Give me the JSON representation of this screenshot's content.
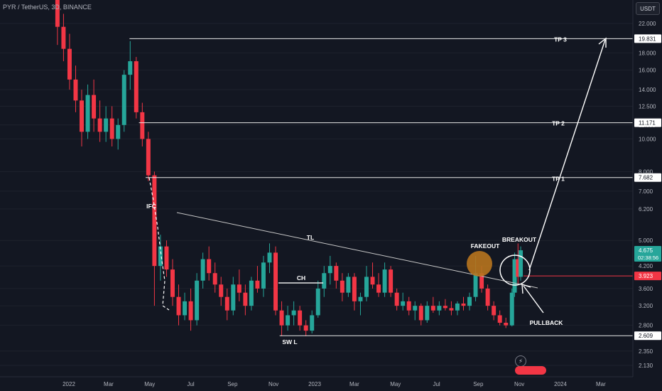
{
  "header": {
    "symbol": "PYR / TetherUS, 3D, BINANCE"
  },
  "toolbar": {
    "currency": "USDT"
  },
  "colors": {
    "bg": "#131722",
    "up": "#26a69a",
    "down": "#f23645",
    "axis_text": "#b2b5be",
    "line": "#e8e8e8",
    "annotation": "#ffffff",
    "fakeout_fill": "#b8741e"
  },
  "icons": {
    "replay": "lightning-icon"
  },
  "chart_data": {
    "type": "candlestick",
    "title": "",
    "xlabel": "",
    "ylabel": "",
    "y_scale": "log",
    "y_ticks": [
      "22.000",
      "18.000",
      "16.000",
      "14.000",
      "12.500",
      "11.000",
      "10.000",
      "8.000",
      "7.000",
      "6.200",
      "5.000",
      "4.200",
      "3.600",
      "3.200",
      "2.800",
      "2.350",
      "2.130"
    ],
    "y_tick_values": [
      22.0,
      18.0,
      16.0,
      14.0,
      12.5,
      11.0,
      10.0,
      8.0,
      7.0,
      6.2,
      5.0,
      4.2,
      3.6,
      3.2,
      2.8,
      2.35,
      2.13
    ],
    "x_ticks": [
      "2022",
      "Mar",
      "May",
      "Jul",
      "Sep",
      "Nov",
      "2023",
      "Mar",
      "May",
      "Jul",
      "Sep",
      "Nov",
      "2024",
      "Mar"
    ],
    "price_labels": [
      {
        "text": "19.831",
        "value": 19.831,
        "style": "white"
      },
      {
        "text": "11.171",
        "value": 11.171,
        "style": "white"
      },
      {
        "text": "7.682",
        "value": 7.682,
        "style": "white"
      },
      {
        "text": "4.675",
        "value": 4.675,
        "style": "green",
        "sub": "02:38:56"
      },
      {
        "text": "3.923",
        "value": 3.923,
        "style": "red"
      },
      {
        "text": "2.609",
        "value": 2.609,
        "style": "white"
      }
    ],
    "horizontal_levels": [
      {
        "label": "TP 3",
        "value": 19.831,
        "from": "2022-04-01"
      },
      {
        "label": "TP 2",
        "value": 11.171,
        "from": "2022-04-15"
      },
      {
        "label": "TP 1",
        "value": 7.682,
        "from": "2022-04-25"
      },
      {
        "label": "",
        "value": 2.609,
        "from": "2022-11-10"
      }
    ],
    "annotations": [
      "IFC",
      "TL",
      "CH",
      "SW L",
      "FAKEOUT",
      "BREAKOUT",
      "PULLBACK"
    ],
    "candles": [
      {
        "date": "2021-12-15",
        "o": 26.0,
        "h": 28.0,
        "l": 19.0,
        "c": 21.5
      },
      {
        "date": "2021-12-24",
        "o": 21.5,
        "h": 23.5,
        "l": 17.0,
        "c": 18.5
      },
      {
        "date": "2022-01-02",
        "o": 18.5,
        "h": 20.5,
        "l": 14.0,
        "c": 15.0
      },
      {
        "date": "2022-01-11",
        "o": 15.0,
        "h": 16.5,
        "l": 12.0,
        "c": 13.0
      },
      {
        "date": "2022-01-20",
        "o": 13.0,
        "h": 14.0,
        "l": 9.5,
        "c": 10.5
      },
      {
        "date": "2022-01-29",
        "o": 10.5,
        "h": 14.5,
        "l": 10.0,
        "c": 13.5
      },
      {
        "date": "2022-02-07",
        "o": 13.5,
        "h": 15.0,
        "l": 10.5,
        "c": 11.5
      },
      {
        "date": "2022-02-16",
        "o": 11.5,
        "h": 13.0,
        "l": 9.8,
        "c": 10.5
      },
      {
        "date": "2022-02-25",
        "o": 10.5,
        "h": 12.5,
        "l": 9.8,
        "c": 11.5
      },
      {
        "date": "2022-03-06",
        "o": 11.5,
        "h": 12.5,
        "l": 9.5,
        "c": 10.0
      },
      {
        "date": "2022-03-15",
        "o": 10.0,
        "h": 11.5,
        "l": 9.3,
        "c": 11.0
      },
      {
        "date": "2022-03-24",
        "o": 11.0,
        "h": 16.0,
        "l": 10.5,
        "c": 15.5
      },
      {
        "date": "2022-04-02",
        "o": 15.5,
        "h": 19.5,
        "l": 14.0,
        "c": 17.0
      },
      {
        "date": "2022-04-11",
        "o": 17.0,
        "h": 17.5,
        "l": 11.5,
        "c": 12.0
      },
      {
        "date": "2022-04-20",
        "o": 12.0,
        "h": 12.8,
        "l": 9.5,
        "c": 10.0
      },
      {
        "date": "2022-04-29",
        "o": 10.0,
        "h": 10.5,
        "l": 7.5,
        "c": 7.8
      },
      {
        "date": "2022-05-08",
        "o": 7.8,
        "h": 8.0,
        "l": 3.2,
        "c": 4.2
      },
      {
        "date": "2022-05-17",
        "o": 4.2,
        "h": 5.2,
        "l": 3.8,
        "c": 4.8
      },
      {
        "date": "2022-05-26",
        "o": 4.8,
        "h": 5.0,
        "l": 3.9,
        "c": 4.1
      },
      {
        "date": "2022-06-04",
        "o": 4.1,
        "h": 4.4,
        "l": 3.2,
        "c": 3.4
      },
      {
        "date": "2022-06-13",
        "o": 3.4,
        "h": 3.7,
        "l": 2.8,
        "c": 3.0
      },
      {
        "date": "2022-06-22",
        "o": 3.0,
        "h": 3.5,
        "l": 2.9,
        "c": 3.3
      },
      {
        "date": "2022-07-01",
        "o": 3.3,
        "h": 3.6,
        "l": 2.7,
        "c": 2.9
      },
      {
        "date": "2022-07-10",
        "o": 2.9,
        "h": 4.0,
        "l": 2.8,
        "c": 3.8
      },
      {
        "date": "2022-07-19",
        "o": 3.8,
        "h": 4.6,
        "l": 3.6,
        "c": 4.4
      },
      {
        "date": "2022-07-28",
        "o": 4.4,
        "h": 4.8,
        "l": 3.8,
        "c": 4.0
      },
      {
        "date": "2022-08-06",
        "o": 4.0,
        "h": 4.3,
        "l": 3.5,
        "c": 3.7
      },
      {
        "date": "2022-08-15",
        "o": 3.7,
        "h": 3.9,
        "l": 3.2,
        "c": 3.4
      },
      {
        "date": "2022-08-24",
        "o": 3.4,
        "h": 3.6,
        "l": 2.9,
        "c": 3.1
      },
      {
        "date": "2022-09-02",
        "o": 3.1,
        "h": 3.9,
        "l": 3.0,
        "c": 3.7
      },
      {
        "date": "2022-09-11",
        "o": 3.7,
        "h": 4.1,
        "l": 3.3,
        "c": 3.5
      },
      {
        "date": "2022-09-20",
        "o": 3.5,
        "h": 3.7,
        "l": 3.0,
        "c": 3.2
      },
      {
        "date": "2022-09-29",
        "o": 3.2,
        "h": 3.9,
        "l": 3.1,
        "c": 3.8
      },
      {
        "date": "2022-10-08",
        "o": 3.8,
        "h": 4.2,
        "l": 3.5,
        "c": 3.6
      },
      {
        "date": "2022-10-17",
        "o": 3.6,
        "h": 4.5,
        "l": 3.4,
        "c": 4.3
      },
      {
        "date": "2022-10-26",
        "o": 4.3,
        "h": 4.9,
        "l": 4.0,
        "c": 4.6
      },
      {
        "date": "2022-11-04",
        "o": 4.6,
        "h": 4.8,
        "l": 3.0,
        "c": 3.1
      },
      {
        "date": "2022-11-13",
        "o": 3.1,
        "h": 3.3,
        "l": 2.6,
        "c": 2.8
      },
      {
        "date": "2022-11-22",
        "o": 2.8,
        "h": 3.2,
        "l": 2.7,
        "c": 3.0
      },
      {
        "date": "2022-12-01",
        "o": 3.0,
        "h": 3.3,
        "l": 2.8,
        "c": 3.1
      },
      {
        "date": "2022-12-10",
        "o": 3.1,
        "h": 3.2,
        "l": 2.7,
        "c": 2.8
      },
      {
        "date": "2022-12-19",
        "o": 2.8,
        "h": 2.9,
        "l": 2.6,
        "c": 2.7
      },
      {
        "date": "2022-12-28",
        "o": 2.7,
        "h": 3.1,
        "l": 2.65,
        "c": 3.0
      },
      {
        "date": "2023-01-06",
        "o": 3.0,
        "h": 3.8,
        "l": 2.95,
        "c": 3.6
      },
      {
        "date": "2023-01-15",
        "o": 3.6,
        "h": 4.2,
        "l": 3.4,
        "c": 4.0
      },
      {
        "date": "2023-01-24",
        "o": 4.0,
        "h": 4.5,
        "l": 3.7,
        "c": 4.2
      },
      {
        "date": "2023-02-02",
        "o": 4.2,
        "h": 4.3,
        "l": 3.6,
        "c": 3.8
      },
      {
        "date": "2023-02-11",
        "o": 3.8,
        "h": 4.0,
        "l": 3.3,
        "c": 3.5
      },
      {
        "date": "2023-02-20",
        "o": 3.5,
        "h": 4.0,
        "l": 3.4,
        "c": 3.9
      },
      {
        "date": "2023-03-01",
        "o": 3.9,
        "h": 4.0,
        "l": 3.1,
        "c": 3.3
      },
      {
        "date": "2023-03-10",
        "o": 3.3,
        "h": 3.5,
        "l": 3.0,
        "c": 3.4
      },
      {
        "date": "2023-03-19",
        "o": 3.4,
        "h": 4.2,
        "l": 3.3,
        "c": 3.9
      },
      {
        "date": "2023-03-28",
        "o": 3.9,
        "h": 4.3,
        "l": 3.6,
        "c": 3.7
      },
      {
        "date": "2023-04-06",
        "o": 3.7,
        "h": 4.0,
        "l": 3.4,
        "c": 3.5
      },
      {
        "date": "2023-04-15",
        "o": 3.5,
        "h": 4.3,
        "l": 3.4,
        "c": 4.1
      },
      {
        "date": "2023-04-24",
        "o": 4.1,
        "h": 4.2,
        "l": 3.4,
        "c": 3.5
      },
      {
        "date": "2023-05-03",
        "o": 3.5,
        "h": 3.6,
        "l": 3.1,
        "c": 3.2
      },
      {
        "date": "2023-05-12",
        "o": 3.2,
        "h": 3.5,
        "l": 3.1,
        "c": 3.3
      },
      {
        "date": "2023-05-21",
        "o": 3.3,
        "h": 3.4,
        "l": 3.0,
        "c": 3.1
      },
      {
        "date": "2023-05-30",
        "o": 3.1,
        "h": 3.3,
        "l": 2.9,
        "c": 3.2
      },
      {
        "date": "2023-06-08",
        "o": 3.2,
        "h": 3.25,
        "l": 2.8,
        "c": 2.9
      },
      {
        "date": "2023-06-17",
        "o": 2.9,
        "h": 3.3,
        "l": 2.85,
        "c": 3.2
      },
      {
        "date": "2023-06-26",
        "o": 3.2,
        "h": 3.4,
        "l": 3.05,
        "c": 3.1
      },
      {
        "date": "2023-07-05",
        "o": 3.1,
        "h": 3.3,
        "l": 3.0,
        "c": 3.2
      },
      {
        "date": "2023-07-14",
        "o": 3.2,
        "h": 3.35,
        "l": 3.1,
        "c": 3.15
      },
      {
        "date": "2023-07-23",
        "o": 3.15,
        "h": 3.3,
        "l": 3.0,
        "c": 3.1
      },
      {
        "date": "2023-08-01",
        "o": 3.1,
        "h": 3.3,
        "l": 3.0,
        "c": 3.25
      },
      {
        "date": "2023-08-10",
        "o": 3.25,
        "h": 3.4,
        "l": 3.1,
        "c": 3.2
      },
      {
        "date": "2023-08-19",
        "o": 3.2,
        "h": 3.5,
        "l": 3.1,
        "c": 3.4
      },
      {
        "date": "2023-08-28",
        "o": 3.4,
        "h": 4.5,
        "l": 3.3,
        "c": 4.0
      },
      {
        "date": "2023-09-06",
        "o": 4.0,
        "h": 4.2,
        "l": 3.5,
        "c": 3.6
      },
      {
        "date": "2023-09-15",
        "o": 3.6,
        "h": 3.7,
        "l": 3.1,
        "c": 3.2
      },
      {
        "date": "2023-09-24",
        "o": 3.2,
        "h": 3.3,
        "l": 2.9,
        "c": 3.0
      },
      {
        "date": "2023-10-03",
        "o": 3.0,
        "h": 3.1,
        "l": 2.8,
        "c": 2.85
      },
      {
        "date": "2023-10-12",
        "o": 2.85,
        "h": 2.95,
        "l": 2.75,
        "c": 2.8
      },
      {
        "date": "2023-10-21",
        "o": 2.8,
        "h": 3.6,
        "l": 2.78,
        "c": 3.5
      },
      {
        "date": "2023-10-25",
        "o": 3.5,
        "h": 4.6,
        "l": 3.4,
        "c": 4.4
      },
      {
        "date": "2023-10-30",
        "o": 4.4,
        "h": 4.9,
        "l": 3.7,
        "c": 3.9
      },
      {
        "date": "2023-11-03",
        "o": 3.9,
        "h": 4.8,
        "l": 3.8,
        "c": 4.675
      }
    ]
  }
}
